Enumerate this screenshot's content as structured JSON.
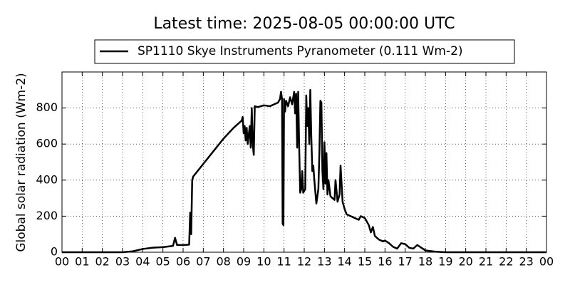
{
  "chart_data": {
    "type": "line",
    "title": "Latest time: 2025-08-05 00:00:00 UTC",
    "ylabel": "Global solar radiation (Wm-2)",
    "legend": "upper center",
    "grid": true,
    "xlim": [
      0,
      24
    ],
    "ylim": [
      0,
      1000
    ],
    "xticks": [
      {
        "value": 0,
        "label": "00"
      },
      {
        "value": 1,
        "label": "01"
      },
      {
        "value": 2,
        "label": "02"
      },
      {
        "value": 3,
        "label": "03"
      },
      {
        "value": 4,
        "label": "04"
      },
      {
        "value": 5,
        "label": "05"
      },
      {
        "value": 6,
        "label": "06"
      },
      {
        "value": 7,
        "label": "07"
      },
      {
        "value": 8,
        "label": "08"
      },
      {
        "value": 9,
        "label": "09"
      },
      {
        "value": 10,
        "label": "10"
      },
      {
        "value": 11,
        "label": "11"
      },
      {
        "value": 12,
        "label": "12"
      },
      {
        "value": 13,
        "label": "13"
      },
      {
        "value": 14,
        "label": "14"
      },
      {
        "value": 15,
        "label": "15"
      },
      {
        "value": 16,
        "label": "16"
      },
      {
        "value": 17,
        "label": "17"
      },
      {
        "value": 18,
        "label": "18"
      },
      {
        "value": 19,
        "label": "19"
      },
      {
        "value": 20,
        "label": "20"
      },
      {
        "value": 21,
        "label": "21"
      },
      {
        "value": 22,
        "label": "22"
      },
      {
        "value": 23,
        "label": "23"
      },
      {
        "value": 24,
        "label": "00"
      }
    ],
    "yticks": [
      0,
      200,
      400,
      600,
      800
    ],
    "x": [
      0,
      3,
      3.5,
      4,
      4.5,
      5,
      5.5,
      5.6,
      5.7,
      6,
      6.3,
      6.35,
      6.4,
      6.45,
      6.5,
      7,
      7.5,
      8,
      8.5,
      8.9,
      8.95,
      9,
      9.05,
      9.1,
      9.15,
      9.2,
      9.3,
      9.35,
      9.4,
      9.45,
      9.5,
      9.55,
      9.7,
      10,
      10.3,
      10.5,
      10.7,
      10.8,
      10.85,
      10.9,
      10.93,
      10.97,
      11,
      11.05,
      11.1,
      11.2,
      11.3,
      11.4,
      11.5,
      11.55,
      11.6,
      11.65,
      11.7,
      11.75,
      11.8,
      11.85,
      11.9,
      11.95,
      12.05,
      12.1,
      12.15,
      12.2,
      12.25,
      12.3,
      12.35,
      12.4,
      12.45,
      12.5,
      12.6,
      12.7,
      12.75,
      12.8,
      12.85,
      12.9,
      12.95,
      13,
      13.05,
      13.1,
      13.15,
      13.2,
      13.3,
      13.4,
      13.5,
      13.55,
      13.65,
      13.75,
      13.8,
      13.9,
      14,
      14.1,
      14.3,
      14.5,
      14.7,
      14.8,
      15,
      15.2,
      15.3,
      15.4,
      15.5,
      15.7,
      15.9,
      16,
      16.2,
      16.4,
      16.6,
      16.8,
      17,
      17.2,
      17.4,
      17.6,
      17.8,
      18,
      18.5,
      19,
      24
    ],
    "series": [
      {
        "name": "SP1110 Skye Instruments Pyranometer (0.111 Wm-2)",
        "color": "#000000",
        "values": [
          0,
          0,
          5,
          18,
          25,
          28,
          35,
          80,
          40,
          40,
          42,
          220,
          100,
          400,
          420,
          490,
          560,
          630,
          690,
          730,
          750,
          660,
          700,
          620,
          690,
          600,
          700,
          580,
          800,
          600,
          540,
          810,
          805,
          815,
          810,
          820,
          830,
          850,
          890,
          850,
          160,
          150,
          850,
          780,
          840,
          810,
          860,
          820,
          890,
          770,
          880,
          580,
          890,
          580,
          330,
          350,
          450,
          330,
          350,
          870,
          700,
          800,
          600,
          900,
          640,
          450,
          480,
          400,
          270,
          350,
          550,
          840,
          830,
          450,
          350,
          610,
          380,
          550,
          320,
          400,
          310,
          300,
          290,
          400,
          280,
          320,
          480,
          280,
          240,
          210,
          200,
          190,
          180,
          200,
          190,
          150,
          110,
          140,
          90,
          70,
          60,
          65,
          50,
          30,
          20,
          50,
          45,
          25,
          20,
          40,
          25,
          10,
          3,
          0,
          0
        ]
      }
    ]
  }
}
